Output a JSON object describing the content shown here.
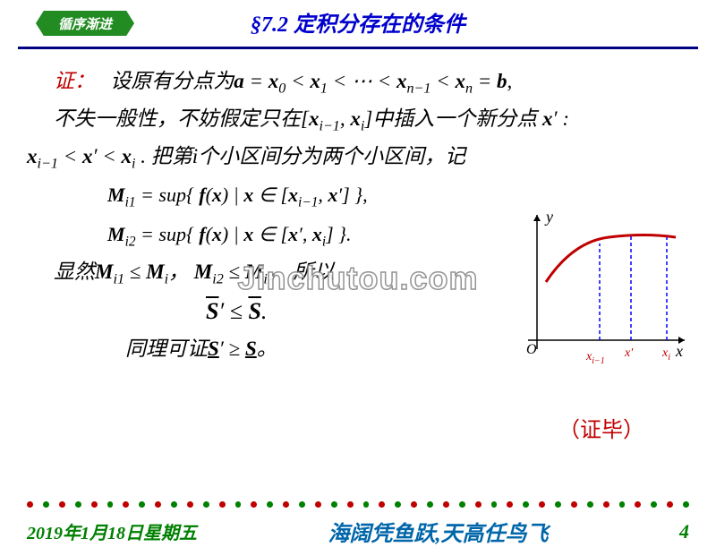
{
  "header": {
    "badge": "循序渐进",
    "title": "§7.2  定积分存在的条件"
  },
  "content": {
    "proof_label": "证：",
    "line1_a": "设原有分点为",
    "line1_b": "a = x",
    "line1_c": " < x",
    "line1_d": " < ⋯ < x",
    "line1_e": " < x",
    "line1_f": " = b,",
    "line2_a": "不失一般性，不妨假定只在",
    "line2_b": "中插入一个新分点",
    "line3_a": "把第i个小区间分为两个小区间，记",
    "eq1_a": "M",
    "eq1_b": " = sup",
    "eq2_a": "M",
    "eq2_b": " = sup",
    "obviously": "显然",
    "so": "所以",
    "final_eq": " ≤ ",
    "similarly": "同理可证",
    "qed": "（证毕）"
  },
  "graph": {
    "y_label": "y",
    "x_label": "x",
    "origin": "O",
    "tick1": "x",
    "tick2": "x′",
    "tick3": "x",
    "curve_color": "#c00000",
    "dash_color": "#0000ff",
    "axis_color": "#000000"
  },
  "watermark": "Jinchutou.com",
  "footer": {
    "date": "2019年1月18日星期五",
    "motto": "海阔凭鱼跃,天高任鸟飞",
    "page": "4",
    "dot_colors": [
      "#c00000",
      "#008000"
    ]
  }
}
